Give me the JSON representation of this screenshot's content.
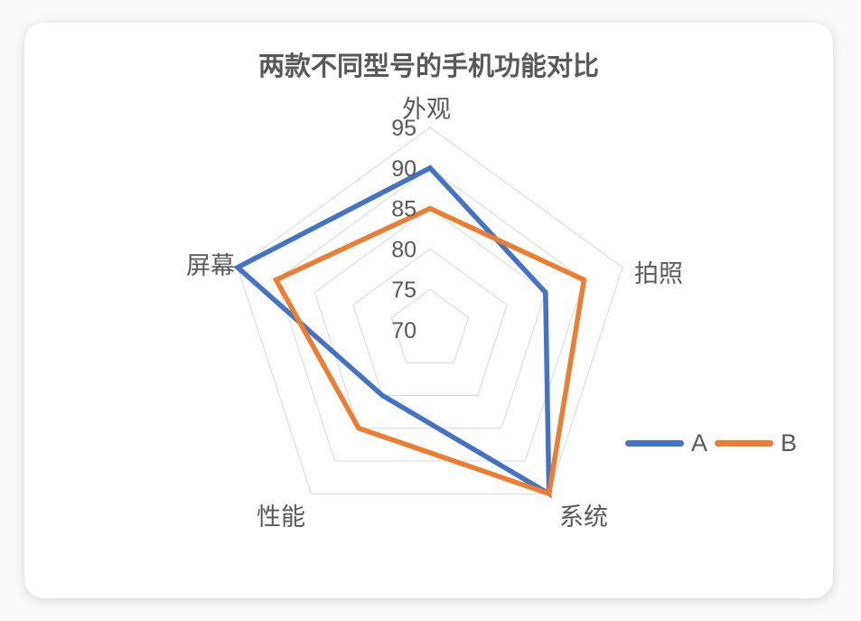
{
  "page": {
    "background": "#fafafa"
  },
  "card": {
    "background": "#ffffff"
  },
  "chart_data": {
    "type": "radar",
    "title": "两款不同型号的手机功能对比",
    "categories": [
      "外观",
      "拍照",
      "系统",
      "性能",
      "屏幕"
    ],
    "series": [
      {
        "name": "A",
        "color": "#4472C4",
        "values": [
          90,
          85,
          95,
          80,
          95
        ]
      },
      {
        "name": "B",
        "color": "#ED7D31",
        "values": [
          85,
          90,
          95,
          85,
          90
        ]
      }
    ],
    "axis": {
      "min": 70,
      "max": 95,
      "interval": 5,
      "tick_labels": [
        "95",
        "90",
        "85",
        "80",
        "75",
        "70"
      ]
    },
    "grid": true,
    "spokes": false,
    "gridline_color": "#D9D9D9",
    "text_color": "#595959",
    "legend_position": "right-middle"
  }
}
